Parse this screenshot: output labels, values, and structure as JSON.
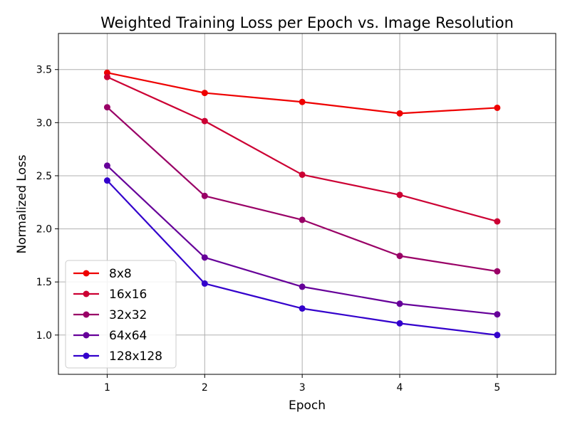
{
  "chart_data": {
    "type": "line",
    "title": "Weighted Training Loss per Epoch vs. Image Resolution",
    "xlabel": "Epoch",
    "ylabel": "Normalized Loss",
    "x": [
      1,
      2,
      3,
      4,
      5
    ],
    "x_tick_labels": [
      "1",
      "2",
      "3",
      "4",
      "5"
    ],
    "y_ticks": [
      1.0,
      1.5,
      2.0,
      2.5,
      3.0,
      3.5
    ],
    "y_tick_labels": [
      "1.0",
      "1.5",
      "2.0",
      "2.5",
      "3.0",
      "3.5"
    ],
    "xlim": [
      0.5,
      5.6
    ],
    "ylim": [
      0.63,
      3.84
    ],
    "grid": true,
    "legend_position": "lower-left",
    "series": [
      {
        "name": "8x8",
        "color": "#ee0000",
        "values": [
          3.47,
          3.28,
          3.195,
          3.087,
          3.14
        ]
      },
      {
        "name": "16x16",
        "color": "#cc0033",
        "values": [
          3.43,
          3.015,
          2.51,
          2.32,
          2.07
        ]
      },
      {
        "name": "32x32",
        "color": "#990066",
        "values": [
          3.145,
          2.31,
          2.085,
          1.745,
          1.6
        ]
      },
      {
        "name": "64x64",
        "color": "#660099",
        "values": [
          2.595,
          1.73,
          1.455,
          1.295,
          1.195
        ]
      },
      {
        "name": "128x128",
        "color": "#3300cc",
        "values": [
          2.455,
          1.485,
          1.25,
          1.11,
          1.0
        ]
      }
    ]
  }
}
